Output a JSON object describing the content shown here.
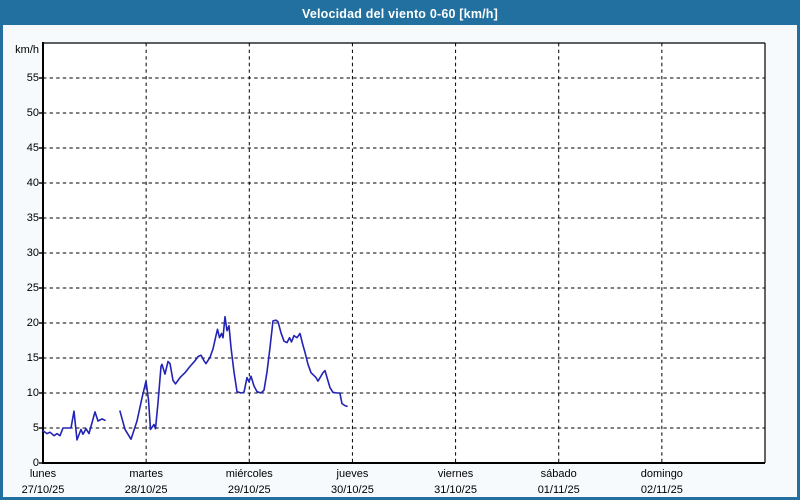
{
  "window": {
    "title": "Velocidad del viento 0-60 [km/h]"
  },
  "colors": {
    "titlebar_bg": "#21709f",
    "frame_border": "#21709f",
    "page_bg": "#f6fafc",
    "plot_bg": "#ffffff",
    "grid": "#000000",
    "axis": "#000000",
    "text": "#000000",
    "line": "#2323b4"
  },
  "chart_data": {
    "type": "line",
    "title": "Velocidad del viento 0-60 [km/h]",
    "ylabel": "km/h",
    "xlabel": "",
    "ylim": [
      0,
      60
    ],
    "yticks": [
      0,
      5,
      10,
      15,
      20,
      25,
      30,
      35,
      40,
      45,
      50,
      55
    ],
    "xlim_days": [
      0,
      7
    ],
    "grid": true,
    "legend": "none",
    "x_axis_days": [
      {
        "name": "lunes",
        "date": "27/10/25"
      },
      {
        "name": "martes",
        "date": "28/10/25"
      },
      {
        "name": "miércoles",
        "date": "29/10/25"
      },
      {
        "name": "jueves",
        "date": "30/10/25"
      },
      {
        "name": "viernes",
        "date": "31/10/25"
      },
      {
        "name": "sábado",
        "date": "01/11/25"
      },
      {
        "name": "domingo",
        "date": "02/11/25"
      }
    ],
    "series": [
      {
        "name": "Velocidad del viento",
        "color": "#2323b4",
        "units": "km/h",
        "x_unit": "days since lunes 27/10/25 00:00",
        "segments": [
          [
            [
              0.0,
              4.6
            ],
            [
              0.039,
              4.2
            ],
            [
              0.068,
              4.4
            ],
            [
              0.107,
              3.9
            ],
            [
              0.136,
              4.2
            ],
            [
              0.165,
              3.9
            ],
            [
              0.194,
              5.0
            ],
            [
              0.271,
              5.0
            ],
            [
              0.301,
              7.4
            ],
            [
              0.33,
              3.3
            ],
            [
              0.368,
              4.8
            ],
            [
              0.388,
              4.1
            ],
            [
              0.417,
              4.9
            ],
            [
              0.446,
              4.2
            ],
            [
              0.504,
              7.3
            ],
            [
              0.533,
              6.0
            ],
            [
              0.572,
              6.3
            ],
            [
              0.601,
              6.1
            ]
          ],
          [
            [
              0.747,
              7.4
            ],
            [
              0.795,
              4.8
            ],
            [
              0.853,
              3.4
            ],
            [
              0.911,
              6.0
            ],
            [
              0.96,
              9.3
            ],
            [
              0.999,
              11.7
            ],
            [
              1.023,
              9.0
            ],
            [
              1.042,
              4.8
            ],
            [
              1.076,
              5.5
            ],
            [
              1.091,
              4.9
            ],
            [
              1.115,
              8.6
            ],
            [
              1.144,
              13.8
            ],
            [
              1.154,
              14.1
            ],
            [
              1.183,
              12.7
            ],
            [
              1.212,
              14.5
            ],
            [
              1.231,
              14.2
            ],
            [
              1.26,
              11.8
            ],
            [
              1.285,
              11.3
            ],
            [
              1.328,
              12.2
            ],
            [
              1.377,
              12.9
            ],
            [
              1.425,
              13.8
            ],
            [
              1.474,
              14.6
            ],
            [
              1.503,
              15.2
            ],
            [
              1.532,
              15.4
            ],
            [
              1.561,
              14.6
            ],
            [
              1.58,
              14.2
            ],
            [
              1.619,
              15.1
            ],
            [
              1.648,
              16.3
            ],
            [
              1.677,
              18.2
            ],
            [
              1.692,
              19.1
            ],
            [
              1.711,
              17.9
            ],
            [
              1.731,
              18.5
            ],
            [
              1.745,
              17.9
            ],
            [
              1.765,
              20.9
            ],
            [
              1.784,
              18.9
            ],
            [
              1.803,
              19.6
            ],
            [
              1.823,
              16.5
            ],
            [
              1.852,
              13.0
            ],
            [
              1.881,
              10.2
            ],
            [
              1.92,
              10.0
            ],
            [
              1.949,
              10.1
            ],
            [
              1.978,
              12.2
            ],
            [
              1.997,
              11.6
            ],
            [
              2.017,
              12.4
            ],
            [
              2.046,
              11.0
            ],
            [
              2.075,
              10.2
            ],
            [
              2.114,
              10.0
            ],
            [
              2.143,
              10.4
            ],
            [
              2.172,
              13.0
            ],
            [
              2.201,
              16.5
            ],
            [
              2.23,
              20.3
            ],
            [
              2.259,
              20.4
            ],
            [
              2.278,
              20.2
            ],
            [
              2.307,
              18.6
            ],
            [
              2.337,
              17.4
            ],
            [
              2.366,
              17.2
            ],
            [
              2.39,
              17.9
            ],
            [
              2.409,
              17.3
            ],
            [
              2.434,
              18.2
            ],
            [
              2.463,
              17.9
            ],
            [
              2.492,
              18.5
            ],
            [
              2.521,
              16.8
            ],
            [
              2.54,
              15.8
            ],
            [
              2.569,
              14.1
            ],
            [
              2.598,
              12.9
            ],
            [
              2.647,
              12.2
            ],
            [
              2.666,
              11.7
            ],
            [
              2.715,
              12.9
            ],
            [
              2.734,
              13.2
            ],
            [
              2.782,
              10.8
            ],
            [
              2.811,
              10.1
            ],
            [
              2.85,
              10.0
            ],
            [
              2.879,
              10.0
            ],
            [
              2.898,
              8.5
            ],
            [
              2.927,
              8.2
            ],
            [
              2.947,
              8.1
            ]
          ]
        ]
      }
    ]
  }
}
